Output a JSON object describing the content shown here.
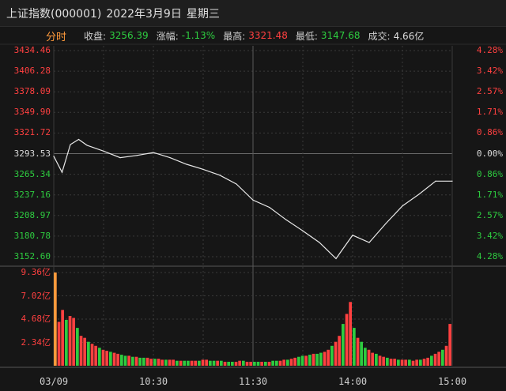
{
  "header": {
    "index_name": "上证指数(000001)",
    "date": "2022年3月9日",
    "weekday": "星期三"
  },
  "info": {
    "tab_label": "分时",
    "close_label": "收盘:",
    "close_value": "3256.39",
    "change_label": "涨幅:",
    "change_value": "-1.13%",
    "high_label": "最高:",
    "high_value": "3321.48",
    "low_label": "最低:",
    "low_value": "3147.68",
    "volume_label": "成交:",
    "volume_value": "4.66亿"
  },
  "colors": {
    "up": "#ff4040",
    "down": "#2ecc40",
    "neutral": "#dcdcdc",
    "line": "#e8e8e8",
    "grid": "#3a3a3a",
    "accent": "#ff9a3c"
  },
  "price_axis": {
    "left": [
      "3434.46",
      "3406.28",
      "3378.09",
      "3349.90",
      "3321.72",
      "3293.53",
      "3265.34",
      "3237.16",
      "3208.97",
      "3180.78",
      "3152.60"
    ],
    "right": [
      "4.28%",
      "3.42%",
      "2.57%",
      "1.71%",
      "0.86%",
      "0.00%",
      "0.86%",
      "1.71%",
      "2.57%",
      "3.42%",
      "4.28%"
    ]
  },
  "volume_axis": [
    "9.36亿",
    "7.02亿",
    "4.68亿",
    "2.34亿"
  ],
  "time_axis": [
    "03/09",
    "10:30",
    "11:30",
    "14:00",
    "15:00"
  ],
  "chart_data": [
    {
      "type": "line",
      "title": "",
      "xlabel": "",
      "ylabel": "",
      "x": [
        "09:30",
        "09:35",
        "09:40",
        "09:45",
        "09:50",
        "10:00",
        "10:10",
        "10:20",
        "10:30",
        "10:40",
        "10:50",
        "11:00",
        "11:10",
        "11:20",
        "11:30",
        "13:10",
        "13:20",
        "13:30",
        "13:40",
        "13:50",
        "14:00",
        "14:10",
        "14:20",
        "14:30",
        "14:40",
        "14:50",
        "15:00"
      ],
      "series": [
        {
          "values": [
            3290,
            3268,
            3306,
            3313,
            3305,
            3297,
            3288,
            3291,
            3295,
            3288,
            3279,
            3272,
            3264,
            3252,
            3230,
            3220,
            3203,
            3188,
            3172,
            3150,
            3182,
            3172,
            3198,
            3222,
            3238,
            3256,
            3256
          ]
        }
      ],
      "ylim": [
        3152.6,
        3434.46
      ],
      "reference": 3293.53
    },
    {
      "type": "bar",
      "title": "",
      "ylabel": "",
      "ylim": [
        0,
        9.36
      ],
      "series": [
        {
          "values": [
            9.36,
            4.4,
            5.6,
            4.6,
            5.0,
            4.8,
            3.8,
            3.0,
            2.8,
            2.4,
            2.2,
            2.0,
            1.8,
            1.6,
            1.5,
            1.4,
            1.3,
            1.2,
            1.1,
            1.0,
            1.0,
            0.9,
            0.9,
            0.8,
            0.8,
            0.8,
            0.7,
            0.7,
            0.7,
            0.6,
            0.6,
            0.6,
            0.6,
            0.5,
            0.5,
            0.5,
            0.5,
            0.5,
            0.5,
            0.5,
            0.6,
            0.6,
            0.5,
            0.5,
            0.5,
            0.5,
            0.4,
            0.4,
            0.4,
            0.4,
            0.5,
            0.5,
            0.4,
            0.4,
            0.4,
            0.4,
            0.4,
            0.4,
            0.4,
            0.5,
            0.5,
            0.5,
            0.6,
            0.6,
            0.7,
            0.8,
            0.9,
            1.0,
            1.0,
            1.1,
            1.2,
            1.2,
            1.3,
            1.4,
            1.6,
            2.0,
            2.4,
            3.0,
            4.2,
            5.2,
            6.4,
            3.8,
            2.8,
            2.4,
            1.8,
            1.6,
            1.3,
            1.2,
            1.0,
            0.9,
            0.8,
            0.7,
            0.7,
            0.6,
            0.6,
            0.6,
            0.6,
            0.5,
            0.6,
            0.6,
            0.7,
            0.8,
            1.0,
            1.2,
            1.4,
            1.6,
            2.0,
            4.2
          ]
        }
      ]
    }
  ]
}
